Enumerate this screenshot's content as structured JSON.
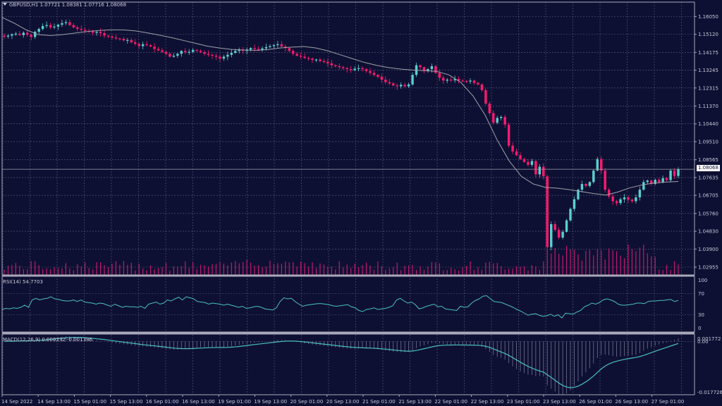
{
  "window": {
    "symbol": "GBPUSD",
    "timeframe": "H1",
    "title": "GBPUSD,H1  1.07721 1.08381 1.07716 1.08068"
  },
  "colors": {
    "background": "#0e1033",
    "grid": "#5a5c80",
    "bull": "#5ad0d0",
    "bear": "#ff1a6e",
    "ma": "#a0a0a8",
    "volume": "#c2186e",
    "rsi": "#4ac0c0",
    "macd_line": "#4ac0c0",
    "macd_hist": "#8c8ca8",
    "border": "#a8a8b8"
  },
  "chart_data": [
    {
      "type": "candlestick",
      "title": "GBPUSD,H1",
      "ohlc_header": {
        "open": 1.07721,
        "high": 1.08381,
        "low": 1.07716,
        "close": 1.08068
      },
      "current_price": "1.08068",
      "y_ticks": [
        "1.16050",
        "1.15120",
        "1.14175",
        "1.13245",
        "1.12315",
        "1.11370",
        "1.10440",
        "1.09510",
        "1.08565",
        "1.07635",
        "1.06705",
        "1.05760",
        "1.04830",
        "1.03900",
        "1.02955"
      ],
      "ylim": [
        1.0255,
        1.168
      ],
      "x_ticks": [
        "14 Sep 2022",
        "14 Sep 13:00",
        "15 Sep 01:00",
        "15 Sep 13:00",
        "16 Sep 01:00",
        "16 Sep 13:00",
        "19 Sep 01:00",
        "19 Sep 13:00",
        "20 Sep 01:00",
        "20 Sep 13:00",
        "21 Sep 01:00",
        "21 Sep 13:00",
        "22 Sep 01:00",
        "22 Sep 13:00",
        "23 Sep 01:00",
        "23 Sep 13:00",
        "26 Sep 01:00",
        "26 Sep 13:00",
        "27 Sep 01:00"
      ],
      "close_path": [
        1.15,
        1.1505,
        1.1512,
        1.1515,
        1.1508,
        1.152,
        1.151,
        1.1498,
        1.1525,
        1.154,
        1.1555,
        1.156,
        1.1548,
        1.1552,
        1.1562,
        1.157,
        1.1575,
        1.156,
        1.1548,
        1.154,
        1.1535,
        1.153,
        1.1528,
        1.152,
        1.1525,
        1.1518,
        1.1505,
        1.15,
        1.1495,
        1.149,
        1.1488,
        1.148,
        1.1482,
        1.147,
        1.1462,
        1.145,
        1.146,
        1.1455,
        1.1448,
        1.1435,
        1.1428,
        1.142,
        1.141,
        1.1395,
        1.14,
        1.141,
        1.1425,
        1.1418,
        1.142,
        1.143,
        1.1425,
        1.1418,
        1.141,
        1.1405,
        1.14,
        1.1395,
        1.1385,
        1.1395,
        1.1405,
        1.1415,
        1.1425,
        1.143,
        1.1425,
        1.1432,
        1.144,
        1.1435,
        1.143,
        1.1438,
        1.1445,
        1.145,
        1.1455,
        1.146,
        1.1448,
        1.144,
        1.1425,
        1.141,
        1.14,
        1.1395,
        1.1388,
        1.1385,
        1.1378,
        1.138,
        1.1372,
        1.1368,
        1.136,
        1.135,
        1.1345,
        1.134,
        1.1335,
        1.133,
        1.1325,
        1.1332,
        1.1335,
        1.133,
        1.132,
        1.131,
        1.13,
        1.129,
        1.1275,
        1.1262,
        1.1255,
        1.1245,
        1.124,
        1.1248,
        1.124,
        1.125,
        1.13,
        1.135,
        1.134,
        1.132,
        1.133,
        1.1345,
        1.131,
        1.1285,
        1.127,
        1.1275,
        1.1272,
        1.1278,
        1.127,
        1.1268,
        1.1265,
        1.127,
        1.1258,
        1.125,
        1.122,
        1.115,
        1.11,
        1.105,
        1.1075,
        1.108,
        1.104,
        1.093,
        1.09,
        1.088,
        1.086,
        1.0845,
        1.083,
        1.085,
        1.078,
        1.082,
        1.077,
        1.04,
        1.052,
        1.049,
        1.045,
        1.048,
        1.054,
        1.06,
        1.065,
        1.07,
        1.073,
        1.072,
        1.074,
        1.08,
        1.086,
        1.08,
        1.07,
        1.0665,
        1.064,
        1.063,
        1.065,
        1.066,
        1.0648,
        1.064,
        1.066,
        1.07,
        1.074,
        1.0748,
        1.073,
        1.0752,
        1.074,
        1.076,
        1.075,
        1.08,
        1.0772,
        1.0807
      ],
      "ma_path": [
        1.16,
        1.157,
        1.1535,
        1.151,
        1.1505,
        1.151,
        1.1518,
        1.1526,
        1.1532,
        1.1535,
        1.1535,
        1.153,
        1.152,
        1.1508,
        1.1495,
        1.148,
        1.1465,
        1.145,
        1.144,
        1.1433,
        1.143,
        1.1428,
        1.1432,
        1.144,
        1.1445,
        1.1448,
        1.144,
        1.1425,
        1.1405,
        1.1385,
        1.1365,
        1.135,
        1.1338,
        1.133,
        1.1325,
        1.1322,
        1.1318,
        1.13,
        1.126,
        1.119,
        1.109,
        1.096,
        1.085,
        1.077,
        1.073,
        1.0712,
        1.0708,
        1.07,
        1.069,
        1.068,
        1.0672,
        1.0688,
        1.071,
        1.0725,
        1.0735,
        1.074,
        1.0743
      ],
      "volume_ylim": [
        0,
        1
      ]
    },
    {
      "type": "line",
      "title": "RSI(14) 54.7703",
      "y_ticks": [
        "100",
        "70",
        "30",
        "0"
      ],
      "ylim": [
        0,
        100
      ],
      "values": [
        40,
        42,
        41,
        43,
        42,
        44,
        48,
        44,
        58,
        61,
        58,
        60,
        61,
        64,
        60,
        59,
        57,
        56,
        56,
        58,
        55,
        58,
        54,
        53,
        52,
        50,
        52,
        51,
        48,
        46,
        50,
        47,
        44,
        46,
        45,
        45,
        44,
        46,
        42,
        50,
        52,
        54,
        50,
        52,
        58,
        56,
        60,
        63,
        58,
        64,
        62,
        60,
        55,
        54,
        53,
        50,
        52,
        51,
        50,
        48,
        50,
        48,
        46,
        44,
        46,
        42,
        43,
        45,
        46,
        44,
        41,
        40,
        39,
        43,
        55,
        62,
        60,
        61,
        55,
        50,
        46,
        48,
        49,
        50,
        51,
        51,
        50,
        49,
        47,
        46,
        47,
        48,
        49,
        45,
        43,
        38,
        36,
        40,
        41,
        43,
        40,
        41,
        42,
        44,
        47,
        58,
        61,
        56,
        52,
        54,
        49,
        41,
        43,
        46,
        48,
        50,
        45,
        46,
        41,
        40,
        39,
        38,
        46,
        44,
        45,
        52,
        57,
        60,
        65,
        66,
        60,
        55,
        54,
        53,
        50,
        47,
        44,
        40,
        37,
        33,
        29,
        31,
        32,
        29,
        27,
        28,
        31,
        27,
        30,
        24,
        33,
        32,
        31,
        35,
        38,
        45,
        48,
        52,
        50,
        53,
        58,
        60,
        58,
        55,
        50,
        48,
        48,
        49,
        50,
        52,
        52,
        51,
        55,
        56,
        56,
        57,
        57,
        58,
        59,
        55,
        57
      ]
    },
    {
      "type": "bar+line",
      "title": "MACD(12,26,9) 0.000232 -0.001386",
      "main_value": 0.000232,
      "signal_value": -0.001386,
      "y_ticks": [
        "0.001772",
        "0.00",
        "-0.017726"
      ],
      "ylim": [
        -0.0185,
        0.0025
      ]
    }
  ]
}
